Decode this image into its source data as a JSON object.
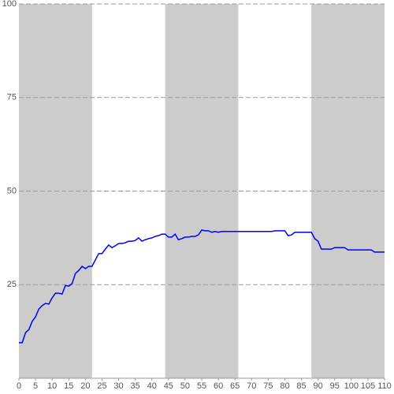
{
  "chart_data": {
    "type": "line",
    "x": [
      0,
      1,
      2,
      3,
      4,
      5,
      6,
      7,
      8,
      9,
      10,
      11,
      12,
      13,
      14,
      15,
      16,
      17,
      18,
      19,
      20,
      21,
      22,
      23,
      24,
      25,
      26,
      27,
      28,
      29,
      30,
      31,
      32,
      33,
      34,
      35,
      36,
      37,
      38,
      39,
      40,
      41,
      42,
      43,
      44,
      45,
      46,
      47,
      48,
      49,
      50,
      51,
      52,
      53,
      54,
      55,
      56,
      57,
      58,
      59,
      60,
      61,
      62,
      63,
      64,
      65,
      66,
      67,
      68,
      69,
      70,
      71,
      72,
      73,
      74,
      75,
      76,
      77,
      78,
      79,
      80,
      81,
      82,
      83,
      84,
      85,
      86,
      87,
      88,
      89,
      90,
      91,
      92,
      93,
      94,
      95,
      96,
      97,
      98,
      99,
      100,
      101,
      102,
      103,
      104,
      105,
      106,
      107,
      108,
      109,
      110
    ],
    "series": [
      {
        "color": "#0000ff",
        "values": [
          9.5,
          9.5,
          12.2,
          13,
          15.2,
          16.4,
          18.5,
          19.4,
          20,
          19.8,
          21.5,
          22.7,
          22.7,
          22.5,
          24.8,
          24.6,
          25.3,
          28,
          28.8,
          29.9,
          29.3,
          29.9,
          29.9,
          31.6,
          33.3,
          33.3,
          34.5,
          35.6,
          34.9,
          35.4,
          36,
          36,
          36.2,
          36.6,
          36.6,
          36.8,
          37.5,
          36.6,
          37,
          37.3,
          37.5,
          37.9,
          38.1,
          38.5,
          38.5,
          37.7,
          37.7,
          38.5,
          37,
          37.3,
          37.7,
          37.7,
          37.9,
          37.9,
          38.3,
          39.6,
          39.4,
          39.4,
          39,
          39.2,
          39,
          39.2,
          39.2,
          39.2,
          39.2,
          39.2,
          39.2,
          39.2,
          39.2,
          39.2,
          39.2,
          39.2,
          39.2,
          39.2,
          39.2,
          39.2,
          39.2,
          39.4,
          39.4,
          39.4,
          39.4,
          38.1,
          38.3,
          39,
          39,
          39,
          39,
          39,
          39,
          37.3,
          36.6,
          34.5,
          34.5,
          34.5,
          34.5,
          34.9,
          34.9,
          34.9,
          34.9,
          34.3,
          34.3,
          34.3,
          34.3,
          34.3,
          34.3,
          34.3,
          34.3,
          33.7,
          33.7,
          33.7,
          33.7
        ]
      }
    ],
    "xlim": [
      0,
      110
    ],
    "ylim": [
      0,
      100
    ],
    "xticks": [
      0,
      5,
      10,
      15,
      20,
      25,
      30,
      35,
      40,
      45,
      50,
      55,
      60,
      65,
      70,
      75,
      80,
      85,
      90,
      95,
      100,
      105,
      110
    ],
    "yticks": [
      25,
      50,
      75,
      100
    ],
    "grid": true,
    "bands": [
      [
        0,
        22
      ],
      [
        44,
        66
      ],
      [
        88,
        110
      ]
    ],
    "band_color": "#cccccc"
  }
}
